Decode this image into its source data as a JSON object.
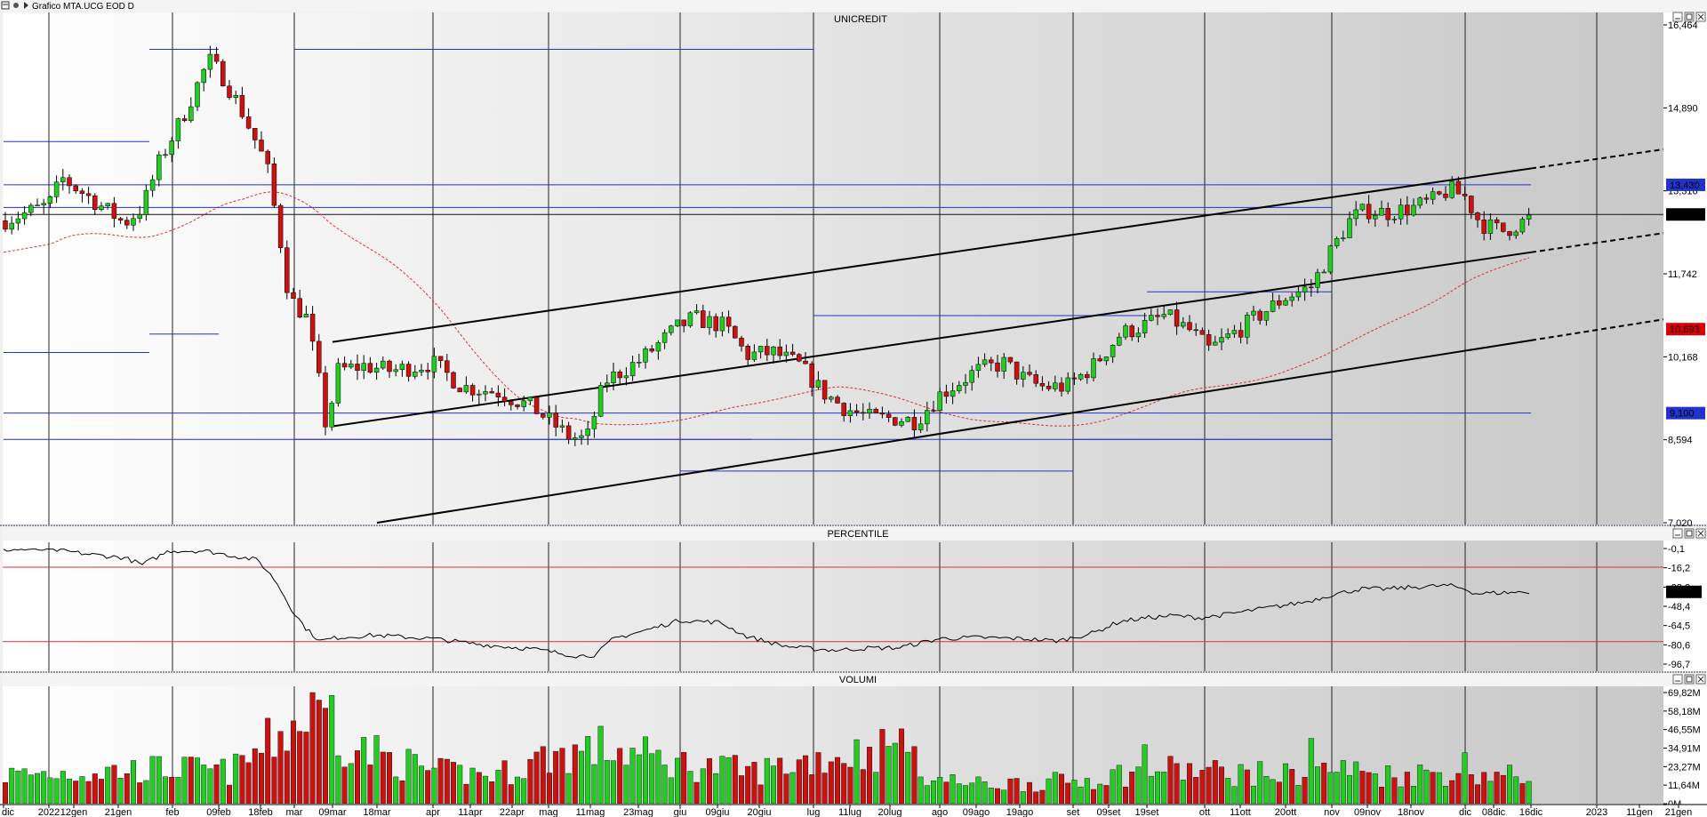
{
  "window": {
    "title": "Grafico MTA.UCG EOD D"
  },
  "colors": {
    "up_candle": "#22cc22",
    "down_candle": "#cc1111",
    "channel": "#000000",
    "envelope": "#2233cc",
    "ma": "#dd3333",
    "band_line": "#dd3333"
  },
  "icons": [
    "window-menu-icon",
    "pin-icon",
    "arrow-icon",
    "minimize-icon",
    "maximize-icon",
    "close-icon"
  ],
  "x_axis": {
    "labels": [
      "dic",
      "2022",
      "12gen",
      "21gen",
      "feb",
      "09feb",
      "18feb",
      "mar",
      "09mar",
      "18mar",
      "apr",
      "11apr",
      "22apr",
      "mag",
      "11mag",
      "23mag",
      "giu",
      "09giu",
      "20giu",
      "lug",
      "11lug",
      "20lug",
      "ago",
      "09ago",
      "19ago",
      "set",
      "09set",
      "19set",
      "ott",
      "11ott",
      "20ott",
      "nov",
      "09nov",
      "18nov",
      "dic",
      "08dic",
      "16dic",
      "2023",
      "11gen",
      "21gen"
    ]
  },
  "chart_data": [
    {
      "type": "candlestick",
      "title": "UNICREDIT",
      "ylim": [
        7.02,
        16.464
      ],
      "yticks": [
        "16,464",
        "14,890",
        "13,316",
        "11,742",
        "10,168",
        "8,594",
        "7,020"
      ],
      "price_tags": [
        {
          "label": "13,430",
          "value": 13.43,
          "color": "#2233cc"
        },
        {
          "label": "12,868",
          "value": 12.868,
          "color": "#000000"
        },
        {
          "label": "10,693",
          "value": 10.693,
          "color": "#dd0000"
        },
        {
          "label": "9,100",
          "value": 9.1,
          "color": "#2233cc"
        }
      ],
      "last_close": 12.868,
      "trend_channel": {
        "upper": {
          "from": [
            "09mar",
            10.45
          ],
          "to": [
            "16dic",
            13.74
          ]
        },
        "middle": {
          "from": [
            "09mar",
            8.85
          ],
          "to": [
            "16dic",
            12.15
          ]
        },
        "lower": {
          "from": [
            "18mar",
            7.02
          ],
          "to": [
            "16dic",
            10.48
          ]
        }
      },
      "envelope_levels": [
        {
          "from": "dic",
          "to": "18gen",
          "upper": 14.25,
          "lower": 10.25
        },
        {
          "from": "18gen",
          "to": "09feb",
          "upper": 16.0,
          "lower": 10.6
        },
        {
          "from": "mar",
          "to": "28giu",
          "upper": 16.0,
          "lower": 8.6
        },
        {
          "from": "giu",
          "to": "lug",
          "upper": 16.0,
          "lower": 8.0
        },
        {
          "from": "lug",
          "to": "set",
          "upper": 10.95,
          "lower": 8.0
        },
        {
          "from": "set",
          "to": "19set",
          "upper": 10.95,
          "lower": 8.6
        },
        {
          "from": "19set",
          "to": "nov",
          "upper": 11.4,
          "lower": 8.6
        },
        {
          "from": "nov",
          "to": "dic",
          "upper": 13.0,
          "lower": 8.6
        },
        {
          "from": "dic",
          "to": "16dic",
          "upper": 13.43,
          "lower": 9.1
        }
      ]
    },
    {
      "type": "line",
      "title": "PERCENTILE",
      "ylim": [
        -100,
        0
      ],
      "yticks": [
        "-0,1",
        "-16,2",
        "-32,3",
        "-48,4",
        "-64,5",
        "-80,6",
        "-96,7"
      ],
      "bands": [
        -16.2,
        -80.6
      ],
      "last_value_label": "-37,5",
      "last_value": -37.5
    },
    {
      "type": "bar",
      "title": "VOLUMI",
      "ylim": [
        0,
        69.82
      ],
      "yticks": [
        "69,82M",
        "58,18M",
        "46,55M",
        "34,91M",
        "23,27M",
        "11,64M",
        "0M"
      ]
    }
  ]
}
